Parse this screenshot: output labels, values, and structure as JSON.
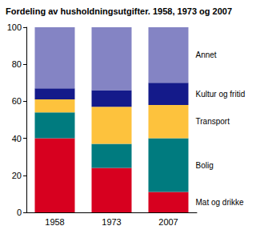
{
  "chart_data": {
    "type": "bar",
    "title": "Fordeling av husholdningsutgifter. 1958, 1973 og 2007",
    "categories": [
      "1958",
      "1973",
      "2007"
    ],
    "stacked": true,
    "legend": "right",
    "grid": false,
    "ylim": [
      0,
      100
    ],
    "yticks": [
      0,
      20,
      40,
      60,
      80,
      100
    ],
    "series": [
      {
        "name": "Mat og drikke",
        "color": "#d7001f",
        "values": [
          40,
          24,
          11
        ]
      },
      {
        "name": "Bolig",
        "color": "#007b7f",
        "values": [
          14,
          13,
          29
        ]
      },
      {
        "name": "Transport",
        "color": "#fdc23d",
        "values": [
          7,
          20,
          18
        ]
      },
      {
        "name": "Kultur og fritid",
        "color": "#141a8a",
        "values": [
          6,
          9,
          12
        ]
      },
      {
        "name": "Annet",
        "color": "#8484c4",
        "values": [
          33,
          34,
          30
        ]
      }
    ]
  }
}
